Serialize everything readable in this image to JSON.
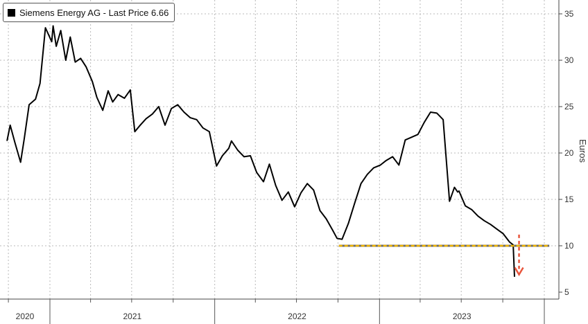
{
  "chart_data": {
    "type": "line",
    "legend": {
      "label": "Siemens Energy AG - Last Price 6.66",
      "placement": "top-left"
    },
    "ylabel": "Euros",
    "ylim": [
      5,
      36
    ],
    "yticks": [
      5,
      10,
      15,
      20,
      25,
      30,
      35
    ],
    "x_tick_labels": [
      "2020",
      "2021",
      "2022",
      "2023"
    ],
    "grid": true,
    "colors": {
      "price": "#000000",
      "support": "#f0b400",
      "arrow": "#e8553c"
    },
    "series": [
      {
        "name": "Siemens Energy AG - Last Price",
        "x": [
          "2020-09-28",
          "2020-10-05",
          "2020-10-15",
          "2020-10-28",
          "2020-11-05",
          "2020-11-16",
          "2020-11-30",
          "2020-12-10",
          "2020-12-22",
          "2021-01-05",
          "2021-01-08",
          "2021-01-15",
          "2021-01-25",
          "2021-02-05",
          "2021-02-15",
          "2021-02-26",
          "2021-03-10",
          "2021-03-22",
          "2021-04-05",
          "2021-04-15",
          "2021-04-28",
          "2021-05-10",
          "2021-05-20",
          "2021-06-01",
          "2021-06-15",
          "2021-06-28",
          "2021-07-08",
          "2021-07-20",
          "2021-08-02",
          "2021-08-16",
          "2021-08-30",
          "2021-09-13",
          "2021-09-27",
          "2021-10-11",
          "2021-10-25",
          "2021-11-08",
          "2021-11-22",
          "2021-12-06",
          "2021-12-20",
          "2022-01-05",
          "2022-01-18",
          "2022-02-01",
          "2022-02-07",
          "2022-02-21",
          "2022-03-07",
          "2022-03-21",
          "2022-04-04",
          "2022-04-19",
          "2022-05-02",
          "2022-05-16",
          "2022-05-30",
          "2022-06-13",
          "2022-06-27",
          "2022-07-11",
          "2022-07-25",
          "2022-08-08",
          "2022-08-22",
          "2022-09-05",
          "2022-09-19",
          "2022-09-29",
          "2022-10-10",
          "2022-10-24",
          "2022-11-07",
          "2022-11-21",
          "2022-12-05",
          "2022-12-19",
          "2023-01-03",
          "2023-01-16",
          "2023-01-30",
          "2023-02-13",
          "2023-02-27",
          "2023-03-13",
          "2023-03-27",
          "2023-04-10",
          "2023-04-24",
          "2023-05-08",
          "2023-05-22",
          "2023-06-05",
          "2023-06-16",
          "2023-06-23",
          "2023-06-26",
          "2023-07-10",
          "2023-07-24",
          "2023-08-07",
          "2023-08-21",
          "2023-09-04",
          "2023-09-18",
          "2023-10-02",
          "2023-10-16",
          "2023-10-24",
          "2023-10-27"
        ],
        "values": [
          21.3,
          23.0,
          21.2,
          19.0,
          21.5,
          25.2,
          25.8,
          27.5,
          33.5,
          32.0,
          33.7,
          31.5,
          33.2,
          30.0,
          32.5,
          29.8,
          30.2,
          29.3,
          27.7,
          26.0,
          24.6,
          26.7,
          25.5,
          26.3,
          25.9,
          26.8,
          22.3,
          23.0,
          23.7,
          24.2,
          25.0,
          23.0,
          24.8,
          25.2,
          24.4,
          23.8,
          23.6,
          22.7,
          22.3,
          18.6,
          19.7,
          20.5,
          21.3,
          20.3,
          19.6,
          19.7,
          17.9,
          16.9,
          18.8,
          16.5,
          14.9,
          15.8,
          14.2,
          15.7,
          16.7,
          16.0,
          13.8,
          12.9,
          11.7,
          10.8,
          10.7,
          12.4,
          14.6,
          16.7,
          17.7,
          18.4,
          18.7,
          19.2,
          19.6,
          18.7,
          21.4,
          21.7,
          22.0,
          23.3,
          24.4,
          24.3,
          23.6,
          14.8,
          16.3,
          15.8,
          15.9,
          14.3,
          13.9,
          13.2,
          12.7,
          12.3,
          11.8,
          11.3,
          10.4,
          10.1,
          6.66
        ]
      }
    ],
    "annotations": [
      {
        "type": "hline",
        "y": 10,
        "x_from": "2022-10-03",
        "x_to": "2024-01-12",
        "style": "dashed",
        "color": "#f0b400"
      },
      {
        "type": "arrow",
        "direction": "down",
        "x": "2023-11-06",
        "y_from": 11.2,
        "y_to": 6.9,
        "style": "dashed",
        "color": "#e8553c"
      }
    ]
  }
}
